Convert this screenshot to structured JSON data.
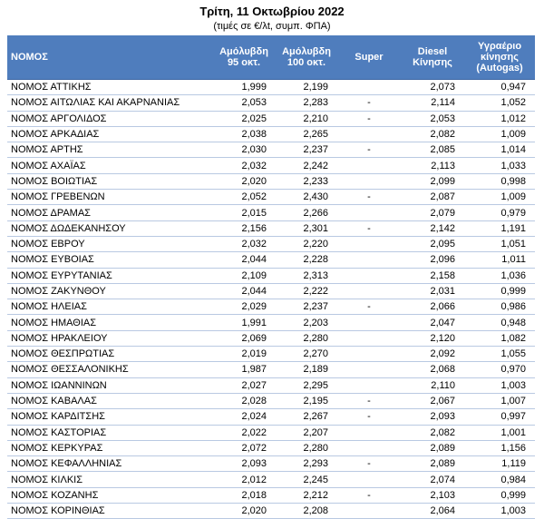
{
  "header": {
    "title": "Τρίτη, 11 Οκτωβρίου 2022",
    "subtitle": "(τιμές σε €/λt, συμπ. ΦΠΑ)"
  },
  "table": {
    "columns": [
      "ΝΟΜΟΣ",
      "Αμόλυβδη\n95 οκτ.",
      "Αμόλυβδη\n100 οκτ.",
      "Super",
      "Diesel\nΚίνησης",
      "Υγραέριο\nκίνησης\n(Autogas)"
    ],
    "rows": [
      [
        "ΝΟΜΟΣ ΑΤΤΙΚΗΣ",
        "1,999",
        "2,199",
        null,
        "2,073",
        "0,947"
      ],
      [
        "ΝΟΜΟΣ ΑΙΤΩΛΙΑΣ ΚΑΙ ΑΚΑΡΝΑΝΙΑΣ",
        "2,053",
        "2,283",
        "-",
        "2,114",
        "1,052"
      ],
      [
        "ΝΟΜΟΣ ΑΡΓΟΛΙΔΟΣ",
        "2,025",
        "2,210",
        "-",
        "2,053",
        "1,012"
      ],
      [
        "ΝΟΜΟΣ ΑΡΚΑΔΙΑΣ",
        "2,038",
        "2,265",
        null,
        "2,082",
        "1,009"
      ],
      [
        "ΝΟΜΟΣ ΑΡΤΗΣ",
        "2,030",
        "2,237",
        "-",
        "2,085",
        "1,014"
      ],
      [
        "ΝΟΜΟΣ ΑΧΑΪΑΣ",
        "2,032",
        "2,242",
        null,
        "2,113",
        "1,033"
      ],
      [
        "ΝΟΜΟΣ ΒΟΙΩΤΙΑΣ",
        "2,020",
        "2,233",
        null,
        "2,099",
        "0,998"
      ],
      [
        "ΝΟΜΟΣ ΓΡΕΒΕΝΩΝ",
        "2,052",
        "2,430",
        "-",
        "2,087",
        "1,009"
      ],
      [
        "ΝΟΜΟΣ ΔΡΑΜΑΣ",
        "2,015",
        "2,266",
        null,
        "2,079",
        "0,979"
      ],
      [
        "ΝΟΜΟΣ ΔΩΔΕΚΑΝΗΣΟΥ",
        "2,156",
        "2,301",
        "-",
        "2,142",
        "1,191"
      ],
      [
        "ΝΟΜΟΣ ΕΒΡΟΥ",
        "2,032",
        "2,220",
        null,
        "2,095",
        "1,051"
      ],
      [
        "ΝΟΜΟΣ ΕΥΒΟΙΑΣ",
        "2,044",
        "2,228",
        null,
        "2,096",
        "1,011"
      ],
      [
        "ΝΟΜΟΣ ΕΥΡΥΤΑΝΙΑΣ",
        "2,109",
        "2,313",
        null,
        "2,158",
        "1,036"
      ],
      [
        "ΝΟΜΟΣ ΖΑΚΥΝΘΟΥ",
        "2,044",
        "2,222",
        null,
        "2,031",
        "0,999"
      ],
      [
        "ΝΟΜΟΣ ΗΛΕΙΑΣ",
        "2,029",
        "2,237",
        "-",
        "2,066",
        "0,986"
      ],
      [
        "ΝΟΜΟΣ ΗΜΑΘΙΑΣ",
        "1,991",
        "2,203",
        null,
        "2,047",
        "0,948"
      ],
      [
        "ΝΟΜΟΣ ΗΡΑΚΛΕΙΟΥ",
        "2,069",
        "2,280",
        null,
        "2,120",
        "1,082"
      ],
      [
        "ΝΟΜΟΣ ΘΕΣΠΡΩΤΙΑΣ",
        "2,019",
        "2,270",
        null,
        "2,092",
        "1,055"
      ],
      [
        "ΝΟΜΟΣ ΘΕΣΣΑΛΟΝΙΚΗΣ",
        "1,987",
        "2,189",
        null,
        "2,068",
        "0,970"
      ],
      [
        "ΝΟΜΟΣ ΙΩΑΝΝΙΝΩΝ",
        "2,027",
        "2,295",
        null,
        "2,110",
        "1,003"
      ],
      [
        "ΝΟΜΟΣ ΚΑΒΑΛΑΣ",
        "2,028",
        "2,195",
        "-",
        "2,067",
        "1,007"
      ],
      [
        "ΝΟΜΟΣ ΚΑΡΔΙΤΣΗΣ",
        "2,024",
        "2,267",
        "-",
        "2,093",
        "0,997"
      ],
      [
        "ΝΟΜΟΣ ΚΑΣΤΟΡΙΑΣ",
        "2,022",
        "2,207",
        null,
        "2,082",
        "1,001"
      ],
      [
        "ΝΟΜΟΣ ΚΕΡΚΥΡΑΣ",
        "2,072",
        "2,280",
        null,
        "2,089",
        "1,156"
      ],
      [
        "ΝΟΜΟΣ ΚΕΦΑΛΛΗΝΙΑΣ",
        "2,093",
        "2,293",
        "-",
        "2,089",
        "1,119"
      ],
      [
        "ΝΟΜΟΣ ΚΙΛΚΙΣ",
        "2,012",
        "2,245",
        null,
        "2,074",
        "0,984"
      ],
      [
        "ΝΟΜΟΣ ΚΟΖΑΝΗΣ",
        "2,018",
        "2,212",
        "-",
        "2,103",
        "0,999"
      ],
      [
        "ΝΟΜΟΣ ΚΟΡΙΝΘΙΑΣ",
        "2,020",
        "2,208",
        null,
        "2,064",
        "1,003"
      ]
    ]
  }
}
